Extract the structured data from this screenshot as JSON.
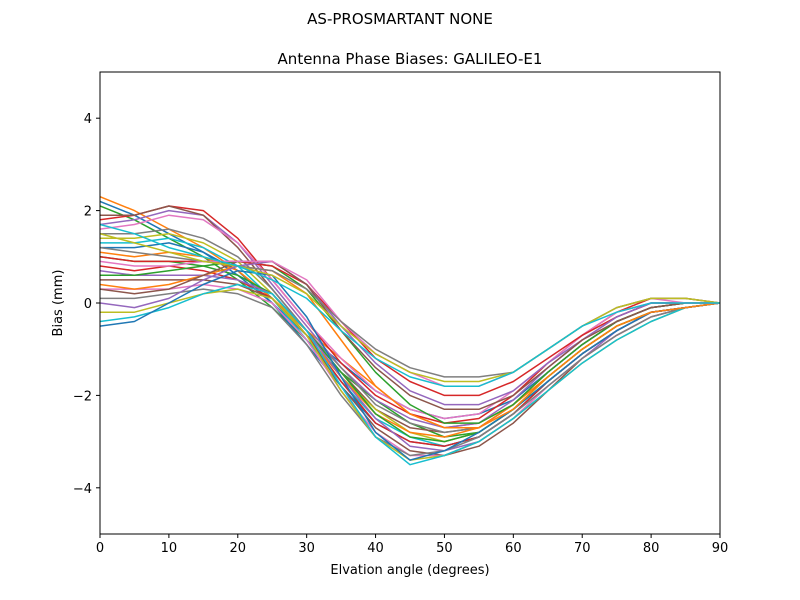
{
  "suptitle": "AS-PROSMARTANT  NONE",
  "chart_data": {
    "type": "line",
    "title": "Antenna Phase Biases: GALILEO-E1",
    "xlabel": "Elvation angle (degrees)",
    "ylabel": "Bias (mm)",
    "xlim": [
      0,
      90
    ],
    "ylim": [
      -5,
      5
    ],
    "xticks": [
      0,
      10,
      20,
      30,
      40,
      50,
      60,
      70,
      80,
      90
    ],
    "yticks": [
      -4,
      -2,
      0,
      2,
      4
    ],
    "ytick_labels": [
      "−4",
      "−2",
      "0",
      "2",
      "4"
    ],
    "grid": false,
    "legend": "none",
    "x": [
      0,
      5,
      10,
      15,
      20,
      25,
      30,
      35,
      40,
      45,
      50,
      55,
      60,
      65,
      70,
      75,
      80,
      85,
      90
    ],
    "series_colors": [
      "#1f77b4",
      "#ff7f0e",
      "#2ca02c",
      "#d62728",
      "#9467bd",
      "#8c564b",
      "#e377c2",
      "#7f7f7f",
      "#bcbd22",
      "#17becf"
    ],
    "series": [
      {
        "values": [
          2.2,
          1.9,
          1.5,
          1.1,
          0.6,
          0.0,
          -0.7,
          -1.3,
          -1.9,
          -2.3,
          -2.5,
          -2.4,
          -2.1,
          -1.5,
          -0.9,
          -0.4,
          -0.1,
          0.0,
          0.0
        ]
      },
      {
        "values": [
          2.3,
          2.0,
          1.6,
          1.2,
          0.7,
          0.1,
          -0.6,
          -1.2,
          -1.8,
          -2.4,
          -2.7,
          -2.6,
          -2.2,
          -1.6,
          -1.0,
          -0.5,
          -0.2,
          -0.1,
          0.0
        ]
      },
      {
        "values": [
          2.1,
          1.8,
          1.4,
          1.0,
          0.5,
          -0.1,
          -0.8,
          -1.5,
          -2.1,
          -2.6,
          -2.9,
          -2.8,
          -2.3,
          -1.7,
          -1.1,
          -0.6,
          -0.2,
          -0.1,
          0.0
        ]
      },
      {
        "values": [
          1.8,
          1.9,
          2.1,
          2.0,
          1.4,
          0.5,
          -0.4,
          -1.3,
          -2.0,
          -2.4,
          -2.6,
          -2.5,
          -2.0,
          -1.3,
          -0.7,
          -0.2,
          0.1,
          0.1,
          0.0
        ]
      },
      {
        "values": [
          1.7,
          1.8,
          2.0,
          1.9,
          1.3,
          0.4,
          -0.5,
          -1.4,
          -2.1,
          -2.5,
          -2.7,
          -2.6,
          -2.1,
          -1.4,
          -0.8,
          -0.3,
          0.0,
          0.0,
          0.0
        ]
      },
      {
        "values": [
          1.9,
          1.9,
          2.1,
          1.9,
          1.2,
          0.3,
          -0.6,
          -1.5,
          -2.3,
          -2.7,
          -2.8,
          -2.7,
          -2.2,
          -1.5,
          -0.9,
          -0.4,
          -0.1,
          0.0,
          0.0
        ]
      },
      {
        "values": [
          1.6,
          1.7,
          1.9,
          1.8,
          1.3,
          0.5,
          -0.4,
          -1.2,
          -1.9,
          -2.3,
          -2.5,
          -2.4,
          -1.9,
          -1.3,
          -0.7,
          -0.2,
          0.0,
          0.0,
          0.0
        ]
      },
      {
        "values": [
          1.5,
          1.5,
          1.6,
          1.4,
          1.0,
          0.3,
          -0.6,
          -1.4,
          -2.2,
          -2.6,
          -2.8,
          -2.7,
          -2.2,
          -1.5,
          -0.9,
          -0.4,
          -0.1,
          0.0,
          0.0
        ]
      },
      {
        "values": [
          1.4,
          1.4,
          1.5,
          1.3,
          0.9,
          0.2,
          -0.7,
          -1.6,
          -2.3,
          -2.8,
          -3.0,
          -2.8,
          -2.3,
          -1.6,
          -1.0,
          -0.5,
          -0.2,
          -0.1,
          0.0
        ]
      },
      {
        "values": [
          1.3,
          1.3,
          1.4,
          1.2,
          0.8,
          0.1,
          -0.8,
          -1.7,
          -2.5,
          -2.9,
          -3.1,
          -2.9,
          -2.4,
          -1.7,
          -1.1,
          -0.6,
          -0.2,
          -0.1,
          0.0
        ]
      },
      {
        "values": [
          1.2,
          1.2,
          1.3,
          1.1,
          0.7,
          0.0,
          -0.9,
          -1.8,
          -2.6,
          -3.0,
          -3.1,
          -2.9,
          -2.4,
          -1.7,
          -1.1,
          -0.6,
          -0.2,
          -0.1,
          0.0
        ]
      },
      {
        "values": [
          1.1,
          1.0,
          1.1,
          1.0,
          0.7,
          0.1,
          -0.7,
          -1.6,
          -2.4,
          -2.8,
          -2.9,
          -2.7,
          -2.2,
          -1.6,
          -1.0,
          -0.5,
          -0.2,
          -0.1,
          0.0
        ]
      },
      {
        "values": [
          1.0,
          0.9,
          0.9,
          0.8,
          0.6,
          0.2,
          -0.6,
          -1.5,
          -2.4,
          -2.9,
          -3.0,
          -2.8,
          -2.3,
          -1.6,
          -1.0,
          -0.5,
          -0.2,
          -0.1,
          0.0
        ]
      },
      {
        "values": [
          0.8,
          0.7,
          0.8,
          0.7,
          0.5,
          0.1,
          -0.7,
          -1.7,
          -2.6,
          -3.0,
          -3.1,
          -2.9,
          -2.4,
          -1.7,
          -1.1,
          -0.6,
          -0.2,
          -0.1,
          0.0
        ]
      },
      {
        "values": [
          0.7,
          0.6,
          0.6,
          0.6,
          0.5,
          0.2,
          -0.6,
          -1.6,
          -2.5,
          -3.1,
          -3.2,
          -3.0,
          -2.5,
          -1.8,
          -1.2,
          -0.6,
          -0.2,
          -0.1,
          0.0
        ]
      },
      {
        "values": [
          0.5,
          0.5,
          0.5,
          0.5,
          0.4,
          0.1,
          -0.7,
          -1.8,
          -2.7,
          -3.2,
          -3.3,
          -3.1,
          -2.6,
          -1.9,
          -1.2,
          -0.7,
          -0.3,
          -0.1,
          0.0
        ]
      },
      {
        "values": [
          0.3,
          0.3,
          0.3,
          0.4,
          0.3,
          0.0,
          -0.8,
          -1.9,
          -2.8,
          -3.3,
          -3.3,
          -3.0,
          -2.5,
          -1.8,
          -1.2,
          -0.7,
          -0.3,
          -0.1,
          0.0
        ]
      },
      {
        "values": [
          0.1,
          0.1,
          0.2,
          0.3,
          0.2,
          -0.1,
          -0.9,
          -2.0,
          -2.9,
          -3.3,
          -3.2,
          -2.9,
          -2.4,
          -1.8,
          -1.2,
          -0.7,
          -0.3,
          -0.1,
          0.0
        ]
      },
      {
        "values": [
          -0.2,
          -0.2,
          0.0,
          0.2,
          0.3,
          0.1,
          -0.7,
          -1.9,
          -2.9,
          -3.4,
          -3.3,
          -3.0,
          -2.5,
          -1.9,
          -1.3,
          -0.8,
          -0.4,
          -0.1,
          0.0
        ]
      },
      {
        "values": [
          -0.4,
          -0.3,
          -0.1,
          0.2,
          0.4,
          0.2,
          -0.6,
          -1.8,
          -2.9,
          -3.5,
          -3.3,
          -3.0,
          -2.5,
          -1.9,
          -1.3,
          -0.8,
          -0.4,
          -0.1,
          0.0
        ]
      },
      {
        "values": [
          -0.5,
          -0.4,
          0.0,
          0.4,
          0.7,
          0.6,
          -0.3,
          -1.6,
          -2.8,
          -3.4,
          -3.2,
          -2.8,
          -2.3,
          -1.7,
          -1.1,
          -0.6,
          -0.2,
          -0.1,
          0.0
        ]
      },
      {
        "values": [
          0.4,
          0.3,
          0.4,
          0.6,
          0.8,
          0.7,
          0.2,
          -0.8,
          -1.8,
          -2.4,
          -2.7,
          -2.7,
          -2.3,
          -1.6,
          -1.0,
          -0.5,
          -0.2,
          -0.1,
          0.0
        ]
      },
      {
        "values": [
          0.6,
          0.6,
          0.7,
          0.8,
          0.9,
          0.8,
          0.3,
          -0.6,
          -1.5,
          -2.2,
          -2.6,
          -2.6,
          -2.2,
          -1.5,
          -0.9,
          -0.4,
          -0.1,
          0.0,
          0.0
        ]
      },
      {
        "values": [
          1.0,
          0.9,
          0.9,
          0.9,
          0.9,
          0.8,
          0.4,
          -0.4,
          -1.2,
          -1.7,
          -2.0,
          -2.0,
          -1.7,
          -1.2,
          -0.7,
          -0.3,
          0.0,
          0.0,
          0.0
        ]
      },
      {
        "values": [
          0.0,
          -0.1,
          0.1,
          0.5,
          0.8,
          0.9,
          0.4,
          -0.5,
          -1.3,
          -1.9,
          -2.2,
          -2.2,
          -1.9,
          -1.3,
          -0.8,
          -0.3,
          0.0,
          0.0,
          0.0
        ]
      },
      {
        "values": [
          0.3,
          0.2,
          0.3,
          0.6,
          0.9,
          0.9,
          0.4,
          -0.6,
          -1.4,
          -2.0,
          -2.3,
          -2.3,
          -2.0,
          -1.4,
          -0.8,
          -0.4,
          -0.1,
          0.0,
          0.0
        ]
      },
      {
        "values": [
          0.9,
          0.8,
          0.8,
          0.9,
          0.9,
          0.9,
          0.5,
          -0.4,
          -1.1,
          -1.5,
          -1.8,
          -1.8,
          -1.5,
          -1.0,
          -0.5,
          -0.1,
          0.1,
          0.0,
          0.0
        ]
      },
      {
        "values": [
          1.2,
          1.1,
          1.0,
          0.9,
          0.8,
          0.7,
          0.3,
          -0.4,
          -1.0,
          -1.4,
          -1.6,
          -1.6,
          -1.5,
          -1.0,
          -0.5,
          -0.1,
          0.1,
          0.1,
          0.0
        ]
      },
      {
        "values": [
          1.5,
          1.3,
          1.1,
          0.9,
          0.8,
          0.6,
          0.2,
          -0.5,
          -1.1,
          -1.5,
          -1.7,
          -1.7,
          -1.5,
          -1.0,
          -0.5,
          -0.1,
          0.1,
          0.1,
          0.0
        ]
      },
      {
        "values": [
          1.7,
          1.5,
          1.2,
          1.0,
          0.8,
          0.5,
          0.1,
          -0.6,
          -1.2,
          -1.6,
          -1.8,
          -1.8,
          -1.5,
          -1.0,
          -0.5,
          -0.2,
          0.0,
          0.0,
          0.0
        ]
      }
    ]
  }
}
